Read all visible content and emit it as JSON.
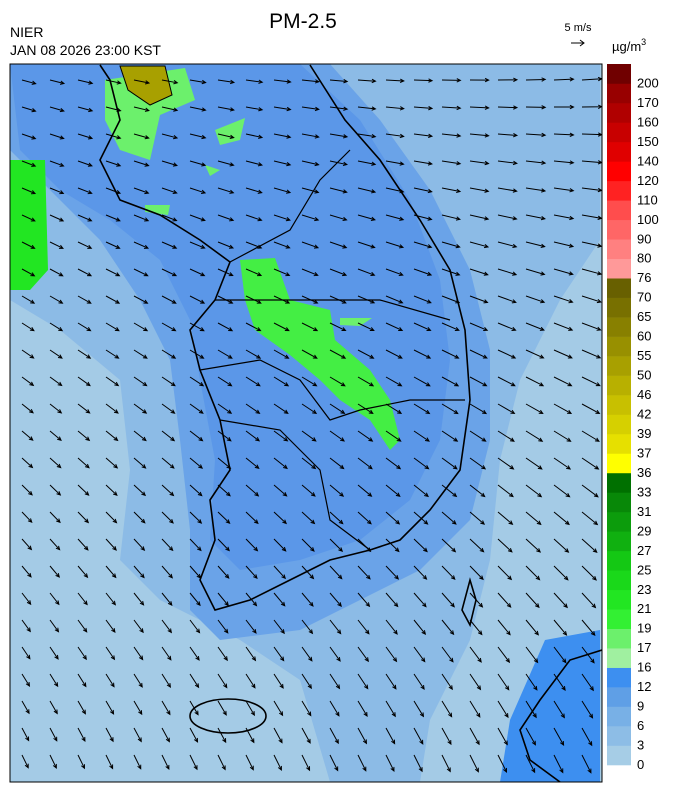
{
  "header": {
    "title": "PM-2.5",
    "agency": "NIER",
    "time": "JAN 08 2026 23:00 KST",
    "wind_scale": "5 m/s",
    "unit": "µg/m",
    "unit_sup": "3"
  },
  "colorbar": {
    "labels": [
      "0",
      "3",
      "6",
      "9",
      "12",
      "16",
      "17",
      "19",
      "21",
      "23",
      "25",
      "27",
      "29",
      "31",
      "33",
      "36",
      "37",
      "39",
      "42",
      "46",
      "50",
      "55",
      "60",
      "65",
      "70",
      "76",
      "80",
      "90",
      "100",
      "110",
      "120",
      "140",
      "150",
      "160",
      "170",
      "200"
    ],
    "colors": [
      "#a6cde6",
      "#8dbde6",
      "#78b0e6",
      "#5f9fe6",
      "#3d8ff0",
      "#a0f0a0",
      "#6cf06c",
      "#33f033",
      "#22e622",
      "#1ad81a",
      "#14c814",
      "#10b010",
      "#0c9c0c",
      "#088808",
      "#007000",
      "#ffff00",
      "#e6e000",
      "#d6d000",
      "#c8c000",
      "#b8b000",
      "#a8a000",
      "#989000",
      "#888000",
      "#787000",
      "#686000",
      "#ff9999",
      "#ff8080",
      "#ff6666",
      "#ff4d4d",
      "#ff2222",
      "#ff0000",
      "#e00000",
      "#c80000",
      "#b00000",
      "#980000",
      "#700000"
    ]
  }
}
